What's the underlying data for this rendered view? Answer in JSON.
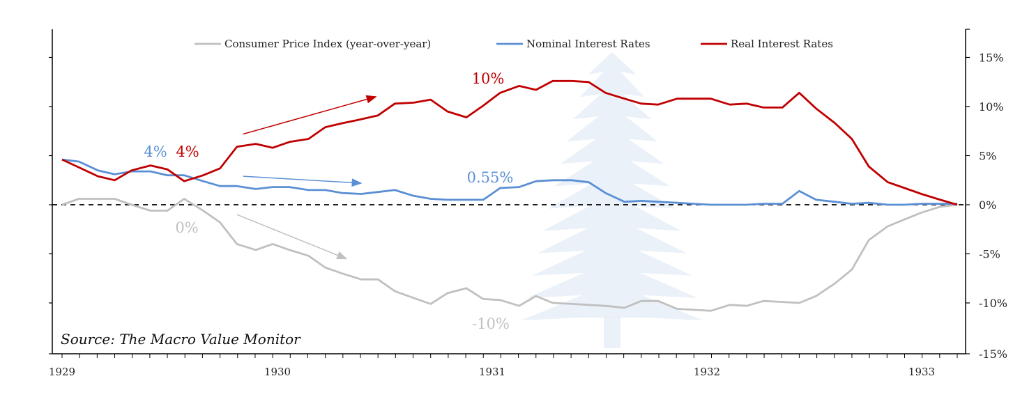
{
  "colors": {
    "cpi": "#c0c0c0",
    "nominal": "#5b8fd4",
    "real": "#c00000",
    "axis": "#000000",
    "watermark": "#dbe6f2"
  },
  "chart_data": {
    "type": "line",
    "title": "",
    "xlabel": "",
    "ylabel": "",
    "x_ticks": [
      "1929",
      "1930",
      "1931",
      "1932",
      "1933"
    ],
    "y_ticks": [
      "15%",
      "10%",
      "5%",
      "0%",
      "-5%",
      "-10%",
      "-15%"
    ],
    "ylim": [
      -15,
      18
    ],
    "y_axis_side": "right",
    "zero_line": "dashed",
    "legend_position": "top-center",
    "x": [
      1929.0,
      1929.08,
      1929.17,
      1929.25,
      1929.33,
      1929.42,
      1929.5,
      1929.58,
      1929.67,
      1929.75,
      1929.83,
      1929.92,
      1930.0,
      1930.08,
      1930.17,
      1930.25,
      1930.33,
      1930.42,
      1930.5,
      1930.58,
      1930.67,
      1930.75,
      1930.83,
      1930.92,
      1931.0,
      1931.08,
      1931.17,
      1931.25,
      1931.33,
      1931.42,
      1931.5,
      1931.58,
      1931.67,
      1931.75,
      1931.83,
      1931.92,
      1932.0,
      1932.08,
      1932.17,
      1932.25,
      1932.33,
      1932.42,
      1932.5,
      1932.58,
      1932.67,
      1932.75,
      1932.83,
      1932.92,
      1933.0,
      1933.08,
      1933.17,
      1933.25
    ],
    "series": [
      {
        "name": "Consumer Price Index (year-over-year)",
        "color_key": "cpi",
        "values": [
          0.0,
          0.6,
          0.6,
          0.6,
          0.0,
          -0.6,
          -0.6,
          0.6,
          -0.6,
          -1.8,
          -4.0,
          -4.6,
          -4.0,
          -4.6,
          -5.2,
          -6.4,
          -7.0,
          -7.6,
          -7.6,
          -8.8,
          -9.5,
          -10.1,
          -9.0,
          -8.5,
          -9.6,
          -9.7,
          -10.3,
          -9.3,
          -10.0,
          -10.1,
          -10.2,
          -10.3,
          -10.5,
          -9.8,
          -9.8,
          -10.6,
          -10.7,
          -10.8,
          -10.2,
          -10.3,
          -9.8,
          -9.9,
          -10.0,
          -9.3,
          -8.0,
          -6.6,
          -3.6,
          -2.2,
          -1.5,
          -0.8,
          -0.2,
          0.0
        ]
      },
      {
        "name": "Nominal Interest Rates",
        "color_key": "nominal",
        "values": [
          4.6,
          4.4,
          3.5,
          3.1,
          3.4,
          3.4,
          3.0,
          3.0,
          2.4,
          1.9,
          1.9,
          1.6,
          1.8,
          1.8,
          1.5,
          1.5,
          1.2,
          1.1,
          1.3,
          1.5,
          0.9,
          0.6,
          0.5,
          0.5,
          0.5,
          1.7,
          1.8,
          2.4,
          2.5,
          2.5,
          2.3,
          1.2,
          0.3,
          0.4,
          0.3,
          0.2,
          0.1,
          0.0,
          0.0,
          0.0,
          0.1,
          0.1,
          1.4,
          0.5,
          0.3,
          0.1,
          0.2,
          0.0,
          0.0,
          0.1,
          0.1,
          0.1
        ]
      },
      {
        "name": "Real Interest Rates",
        "color_key": "real",
        "values": [
          4.6,
          3.8,
          2.9,
          2.5,
          3.5,
          4.0,
          3.6,
          2.4,
          3.0,
          3.7,
          5.9,
          6.2,
          5.8,
          6.4,
          6.7,
          7.9,
          8.3,
          8.7,
          9.1,
          10.3,
          10.4,
          10.7,
          9.5,
          8.9,
          10.1,
          11.4,
          12.1,
          11.7,
          12.6,
          12.6,
          12.5,
          11.4,
          10.8,
          10.3,
          10.2,
          10.8,
          10.8,
          10.8,
          10.2,
          10.3,
          9.9,
          9.9,
          11.4,
          9.8,
          8.3,
          6.7,
          3.9,
          2.3,
          1.7,
          1.1,
          0.5,
          0.0
        ]
      }
    ],
    "annotations": [
      {
        "text": "10%",
        "color_key": "real"
      },
      {
        "text": "4%",
        "color_key": "nominal"
      },
      {
        "text": "4%",
        "color_key": "real"
      },
      {
        "text": "0.55%",
        "color_key": "nominal"
      },
      {
        "text": "0%",
        "color_key": "cpi"
      },
      {
        "text": "-10%",
        "color_key": "cpi"
      }
    ],
    "trend_arrows": [
      {
        "color_key": "real",
        "x0": 1929.86,
        "y0": 7.2,
        "x1": 1930.49,
        "y1": 11.0
      },
      {
        "color_key": "nominal",
        "x0": 1929.86,
        "y0": 2.9,
        "x1": 1930.42,
        "y1": 2.2
      },
      {
        "color_key": "cpi",
        "x0": 1929.83,
        "y0": -1.0,
        "x1": 1930.35,
        "y1": -5.5
      }
    ],
    "source": "Source: The Macro Value Monitor"
  }
}
